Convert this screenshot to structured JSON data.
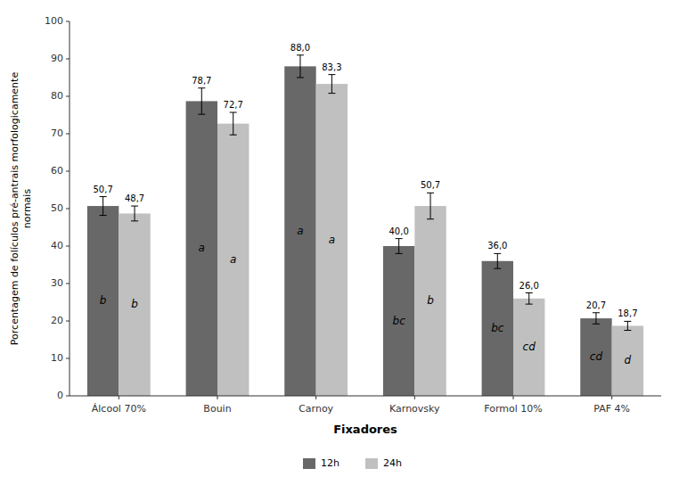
{
  "chart_data": {
    "type": "bar",
    "categories": [
      "Álcool 70%",
      "Bouin",
      "Carnoy",
      "Karnovsky",
      "Formol 10%",
      "PAF 4%"
    ],
    "series": [
      {
        "name": "12h",
        "color": "#686868",
        "values": [
          50.7,
          78.7,
          88.0,
          40.0,
          36.0,
          20.7
        ],
        "errors": [
          2.5,
          3.5,
          3.0,
          2.0,
          2.0,
          1.5
        ],
        "value_labels": [
          "50,7",
          "78,7",
          "88,0",
          "40,0",
          "36,0",
          "20,7"
        ],
        "annotations": [
          "b",
          "a",
          "a",
          "bc",
          "bc",
          "cd"
        ]
      },
      {
        "name": "24h",
        "color": "#c0c0c0",
        "values": [
          48.7,
          72.7,
          83.3,
          50.7,
          26.0,
          18.7
        ],
        "errors": [
          2.0,
          3.0,
          2.5,
          3.5,
          1.5,
          1.2
        ],
        "value_labels": [
          "48,7",
          "72,7",
          "83,3",
          "50,7",
          "26,0",
          "18,7"
        ],
        "annotations": [
          "b",
          "a",
          "a",
          "b",
          "cd",
          "d"
        ]
      }
    ],
    "xlabel": "Fixadores",
    "ylabel": "Porcentagem de folículos pré-antrais morfologicamente\nnormais",
    "ylim": [
      0,
      100
    ],
    "yticks": [
      0,
      10,
      20,
      30,
      40,
      50,
      60,
      70,
      80,
      90,
      100
    ],
    "grid": false,
    "legend": "bottom",
    "data_labels": true
  }
}
